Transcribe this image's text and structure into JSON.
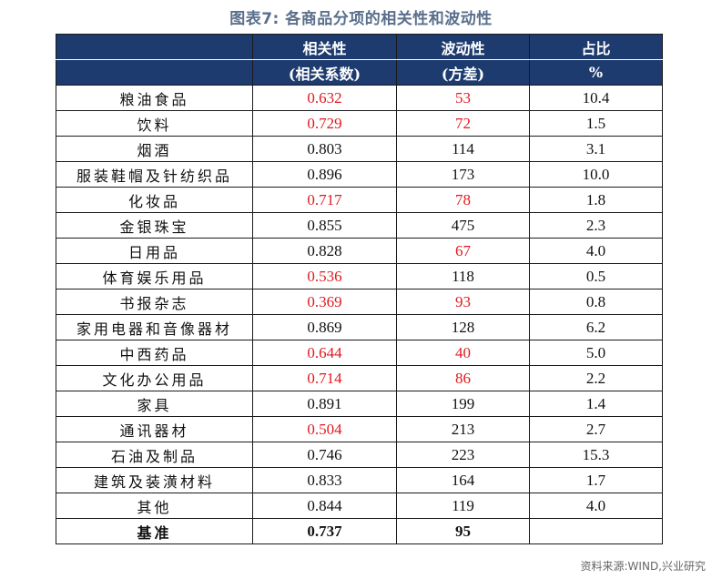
{
  "title": "图表7:  各商品分项的相关性和波动性",
  "table": {
    "header_row1": [
      "",
      "相关性",
      "波动性",
      "占比"
    ],
    "header_row2": [
      "",
      "(相关系数)",
      "(方差)",
      "%"
    ],
    "rows": [
      {
        "name": "粮油食品",
        "corr": "0.632",
        "corr_red": true,
        "var": "53",
        "var_red": true,
        "share": "10.4"
      },
      {
        "name": "饮料",
        "corr": "0.729",
        "corr_red": true,
        "var": "72",
        "var_red": true,
        "share": "1.5"
      },
      {
        "name": "烟酒",
        "corr": "0.803",
        "corr_red": false,
        "var": "114",
        "var_red": false,
        "share": "3.1"
      },
      {
        "name": "服装鞋帽及针纺织品",
        "corr": "0.896",
        "corr_red": false,
        "var": "173",
        "var_red": false,
        "share": "10.0"
      },
      {
        "name": "化妆品",
        "corr": "0.717",
        "corr_red": true,
        "var": "78",
        "var_red": true,
        "share": "1.8"
      },
      {
        "name": "金银珠宝",
        "corr": "0.855",
        "corr_red": false,
        "var": "475",
        "var_red": false,
        "share": "2.3"
      },
      {
        "name": "日用品",
        "corr": "0.828",
        "corr_red": false,
        "var": "67",
        "var_red": true,
        "share": "4.0"
      },
      {
        "name": "体育娱乐用品",
        "corr": "0.536",
        "corr_red": true,
        "var": "118",
        "var_red": false,
        "share": "0.5"
      },
      {
        "name": "书报杂志",
        "corr": "0.369",
        "corr_red": true,
        "var": "93",
        "var_red": true,
        "share": "0.8"
      },
      {
        "name": "家用电器和音像器材",
        "corr": "0.869",
        "corr_red": false,
        "var": "128",
        "var_red": false,
        "share": "6.2"
      },
      {
        "name": "中西药品",
        "corr": "0.644",
        "corr_red": true,
        "var": "40",
        "var_red": true,
        "share": "5.0"
      },
      {
        "name": "文化办公用品",
        "corr": "0.714",
        "corr_red": true,
        "var": "86",
        "var_red": true,
        "share": "2.2"
      },
      {
        "name": "家具",
        "corr": "0.891",
        "corr_red": false,
        "var": "199",
        "var_red": false,
        "share": "1.4"
      },
      {
        "name": "通讯器材",
        "corr": "0.504",
        "corr_red": true,
        "var": "213",
        "var_red": false,
        "share": "2.7"
      },
      {
        "name": "石油及制品",
        "corr": "0.746",
        "corr_red": false,
        "var": "223",
        "var_red": false,
        "share": "15.3"
      },
      {
        "name": "建筑及装潢材料",
        "corr": "0.833",
        "corr_red": false,
        "var": "164",
        "var_red": false,
        "share": "1.7"
      },
      {
        "name": "其他",
        "corr": "0.844",
        "corr_red": false,
        "var": "119",
        "var_red": false,
        "share": "4.0"
      }
    ],
    "benchmark": {
      "name": "基准",
      "corr": "0.737",
      "var": "95",
      "share": ""
    }
  },
  "colors": {
    "header_bg": "#1d3b6e",
    "highlight_red": "#e0191f",
    "title": "#5a6f8c"
  },
  "source": "资料来源:WIND,兴业研究"
}
